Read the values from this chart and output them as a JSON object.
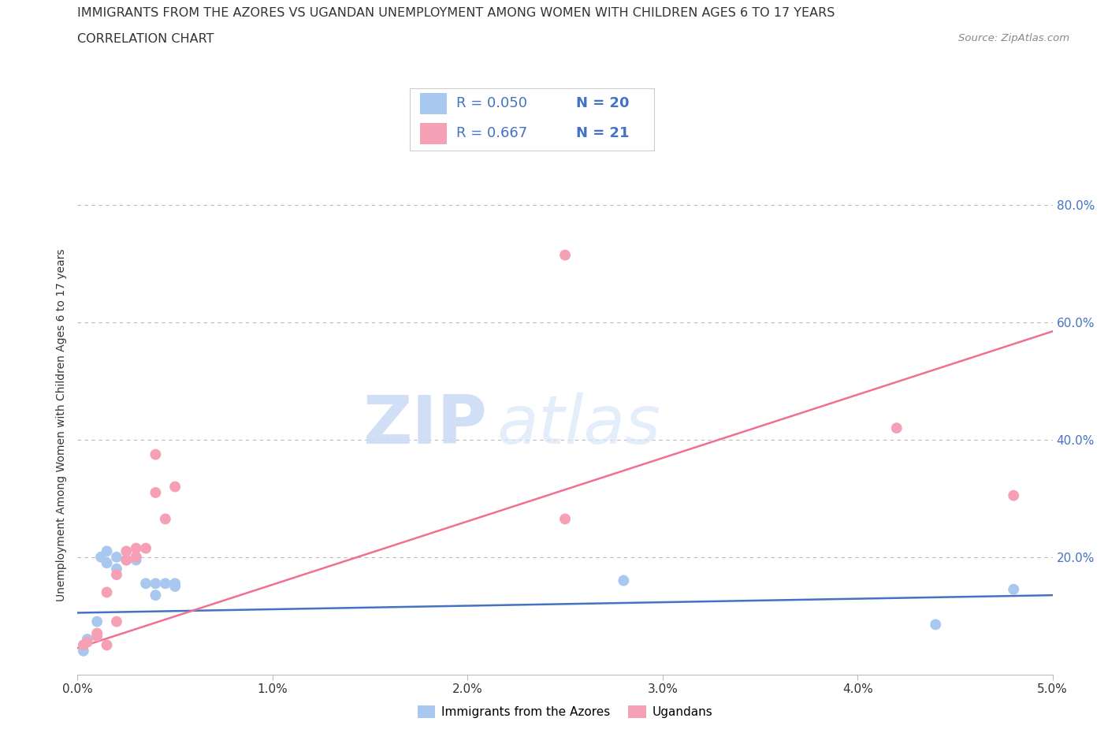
{
  "title_line1": "IMMIGRANTS FROM THE AZORES VS UGANDAN UNEMPLOYMENT AMONG WOMEN WITH CHILDREN AGES 6 TO 17 YEARS",
  "title_line2": "CORRELATION CHART",
  "source_text": "Source: ZipAtlas.com",
  "watermark_zip": "ZIP",
  "watermark_atlas": "atlas",
  "ylabel": "Unemployment Among Women with Children Ages 6 to 17 years",
  "xlim": [
    0.0,
    0.05
  ],
  "ylim": [
    0.0,
    0.85
  ],
  "xtick_labels": [
    "0.0%",
    "1.0%",
    "2.0%",
    "3.0%",
    "4.0%",
    "5.0%"
  ],
  "xtick_values": [
    0.0,
    0.01,
    0.02,
    0.03,
    0.04,
    0.05
  ],
  "ytick_labels": [
    "20.0%",
    "40.0%",
    "60.0%",
    "80.0%"
  ],
  "ytick_values": [
    0.2,
    0.4,
    0.6,
    0.8
  ],
  "legend_r1": "R = 0.050",
  "legend_n1": "N = 20",
  "legend_r2": "R = 0.667",
  "legend_n2": "N = 21",
  "legend_label1": "Immigrants from the Azores",
  "legend_label2": "Ugandans",
  "blue_color": "#a8c8f0",
  "pink_color": "#f5a0b5",
  "blue_line_color": "#4472c4",
  "pink_line_color": "#f07090",
  "text_blue": "#4472c4",
  "text_dark": "#333333",
  "scatter_blue": [
    [
      0.0003,
      0.04
    ],
    [
      0.0005,
      0.06
    ],
    [
      0.001,
      0.09
    ],
    [
      0.0012,
      0.2
    ],
    [
      0.0015,
      0.21
    ],
    [
      0.0015,
      0.19
    ],
    [
      0.002,
      0.2
    ],
    [
      0.002,
      0.18
    ],
    [
      0.0025,
      0.195
    ],
    [
      0.003,
      0.195
    ],
    [
      0.003,
      0.2
    ],
    [
      0.0035,
      0.155
    ],
    [
      0.004,
      0.155
    ],
    [
      0.004,
      0.135
    ],
    [
      0.0045,
      0.155
    ],
    [
      0.005,
      0.155
    ],
    [
      0.005,
      0.15
    ],
    [
      0.028,
      0.16
    ],
    [
      0.044,
      0.085
    ],
    [
      0.048,
      0.145
    ]
  ],
  "scatter_pink": [
    [
      0.0003,
      0.05
    ],
    [
      0.0005,
      0.055
    ],
    [
      0.001,
      0.07
    ],
    [
      0.001,
      0.065
    ],
    [
      0.0015,
      0.05
    ],
    [
      0.0015,
      0.14
    ],
    [
      0.002,
      0.09
    ],
    [
      0.002,
      0.17
    ],
    [
      0.0025,
      0.195
    ],
    [
      0.0025,
      0.21
    ],
    [
      0.003,
      0.2
    ],
    [
      0.003,
      0.215
    ],
    [
      0.0035,
      0.215
    ],
    [
      0.004,
      0.375
    ],
    [
      0.004,
      0.31
    ],
    [
      0.0045,
      0.265
    ],
    [
      0.005,
      0.32
    ],
    [
      0.025,
      0.715
    ],
    [
      0.025,
      0.265
    ],
    [
      0.042,
      0.42
    ],
    [
      0.048,
      0.305
    ]
  ],
  "blue_trendline_x": [
    0.0,
    0.05
  ],
  "blue_trendline_y": [
    0.105,
    0.135
  ],
  "pink_trendline_x": [
    0.0,
    0.05
  ],
  "pink_trendline_y": [
    0.045,
    0.585
  ]
}
